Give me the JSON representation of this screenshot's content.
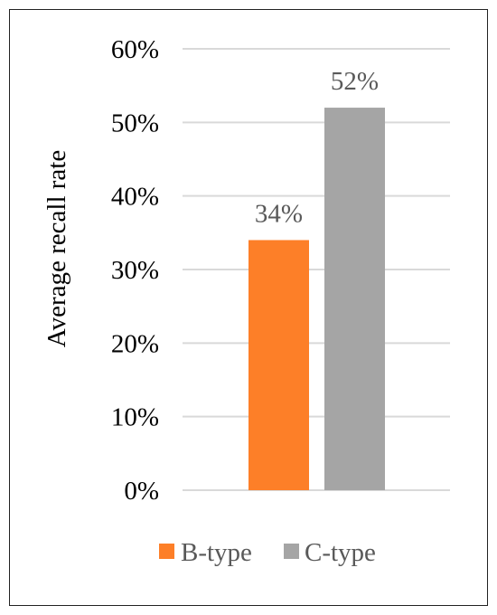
{
  "chart_data": {
    "type": "bar",
    "categories": [
      "B-type",
      "C-type"
    ],
    "values": [
      34,
      52
    ],
    "data_labels": [
      "34%",
      "52%"
    ],
    "colors": [
      "#fd7f28",
      "#a5a5a5"
    ],
    "ylabel": "Average recall rate",
    "xlabel": "",
    "ylim": [
      0,
      60
    ],
    "yticks": [
      0,
      10,
      20,
      30,
      40,
      50,
      60
    ],
    "ytick_labels": [
      "0%",
      "10%",
      "20%",
      "30%",
      "40%",
      "50%",
      "60%"
    ],
    "grid": true,
    "grid_color": "#d9d9d9",
    "legend": {
      "position": "bottom",
      "entries": [
        "B-type",
        "C-type"
      ]
    }
  }
}
